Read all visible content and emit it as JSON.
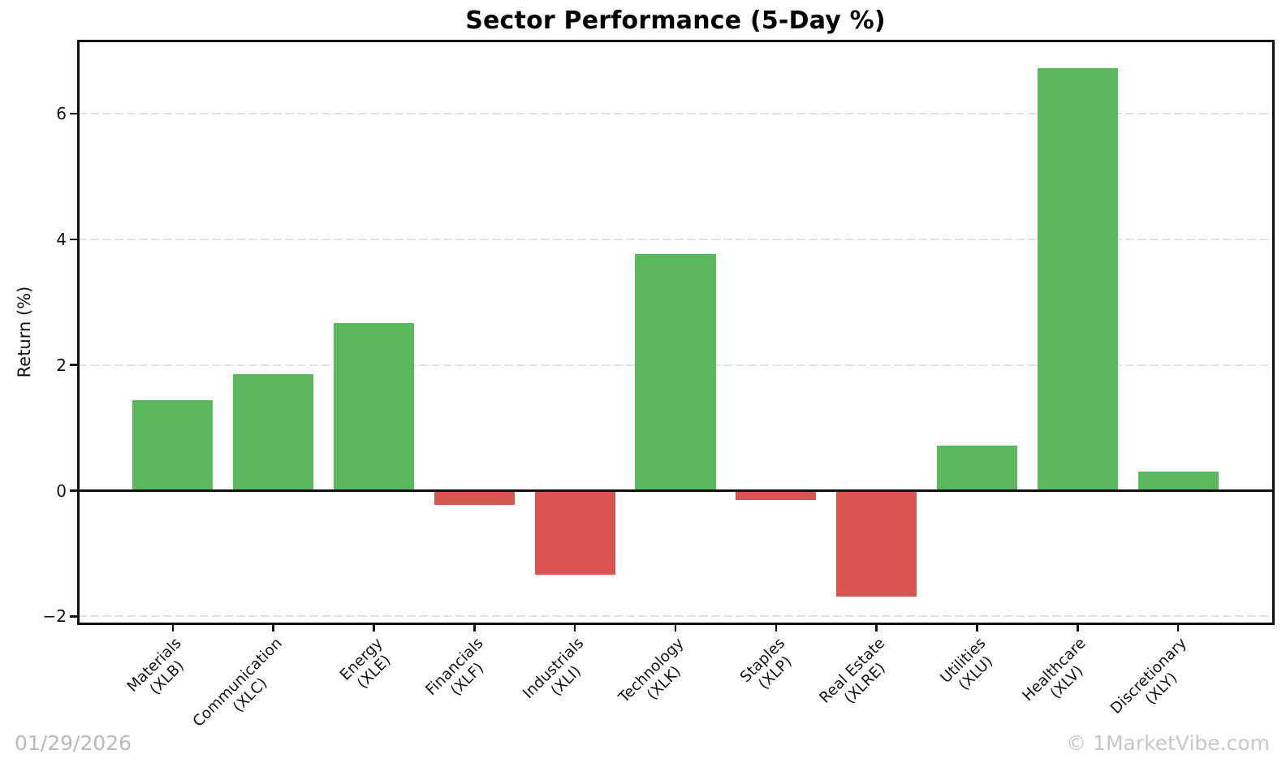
{
  "figure": {
    "title": "Sector Performance (5-Day %)",
    "date_stamp": "01/29/2026",
    "watermark": "© 1MarketVibe.com"
  },
  "chart_data": {
    "type": "bar",
    "title": "Sector Performance (5-Day %)",
    "xlabel": "",
    "ylabel": "Return (%)",
    "ylim": [
      -2.11,
      7.16
    ],
    "yticks": [
      {
        "value": -2,
        "label": "−2"
      },
      {
        "value": 0,
        "label": "0"
      },
      {
        "value": 2,
        "label": "2"
      },
      {
        "value": 4,
        "label": "4"
      },
      {
        "value": 6,
        "label": "6"
      }
    ],
    "grid": "horizontal-dashed",
    "legend": null,
    "zero_line": true,
    "colors": {
      "positive": "#5cb85c",
      "negative": "#d9534f",
      "grid": "#e2e2e2",
      "axis": "#111111",
      "muted_text": "#bdbdbd"
    },
    "categories": [
      "Materials (XLB)",
      "Communication (XLC)",
      "Energy (XLE)",
      "Financials (XLF)",
      "Industrials (XLI)",
      "Technology (XLK)",
      "Staples (XLP)",
      "Real Estate (XLRE)",
      "Utilities (XLU)",
      "Healthcare (XLV)",
      "Discretionary (XLY)"
    ],
    "values": [
      1.44,
      1.85,
      2.67,
      -0.22,
      -1.34,
      3.77,
      -0.15,
      -1.68,
      0.72,
      6.72,
      0.31
    ],
    "bars": [
      {
        "name": "Materials",
        "ticker": "(XLB)",
        "value": 1.44
      },
      {
        "name": "Communication",
        "ticker": "(XLC)",
        "value": 1.85
      },
      {
        "name": "Energy",
        "ticker": "(XLE)",
        "value": 2.67
      },
      {
        "name": "Financials",
        "ticker": "(XLF)",
        "value": -0.22
      },
      {
        "name": "Industrials",
        "ticker": "(XLI)",
        "value": -1.34
      },
      {
        "name": "Technology",
        "ticker": "(XLK)",
        "value": 3.77
      },
      {
        "name": "Staples",
        "ticker": "(XLP)",
        "value": -0.15
      },
      {
        "name": "Real Estate",
        "ticker": "(XLRE)",
        "value": -1.68
      },
      {
        "name": "Utilities",
        "ticker": "(XLU)",
        "value": 0.72
      },
      {
        "name": "Healthcare",
        "ticker": "(XLV)",
        "value": 6.72
      },
      {
        "name": "Discretionary",
        "ticker": "(XLY)",
        "value": 0.31
      }
    ]
  }
}
